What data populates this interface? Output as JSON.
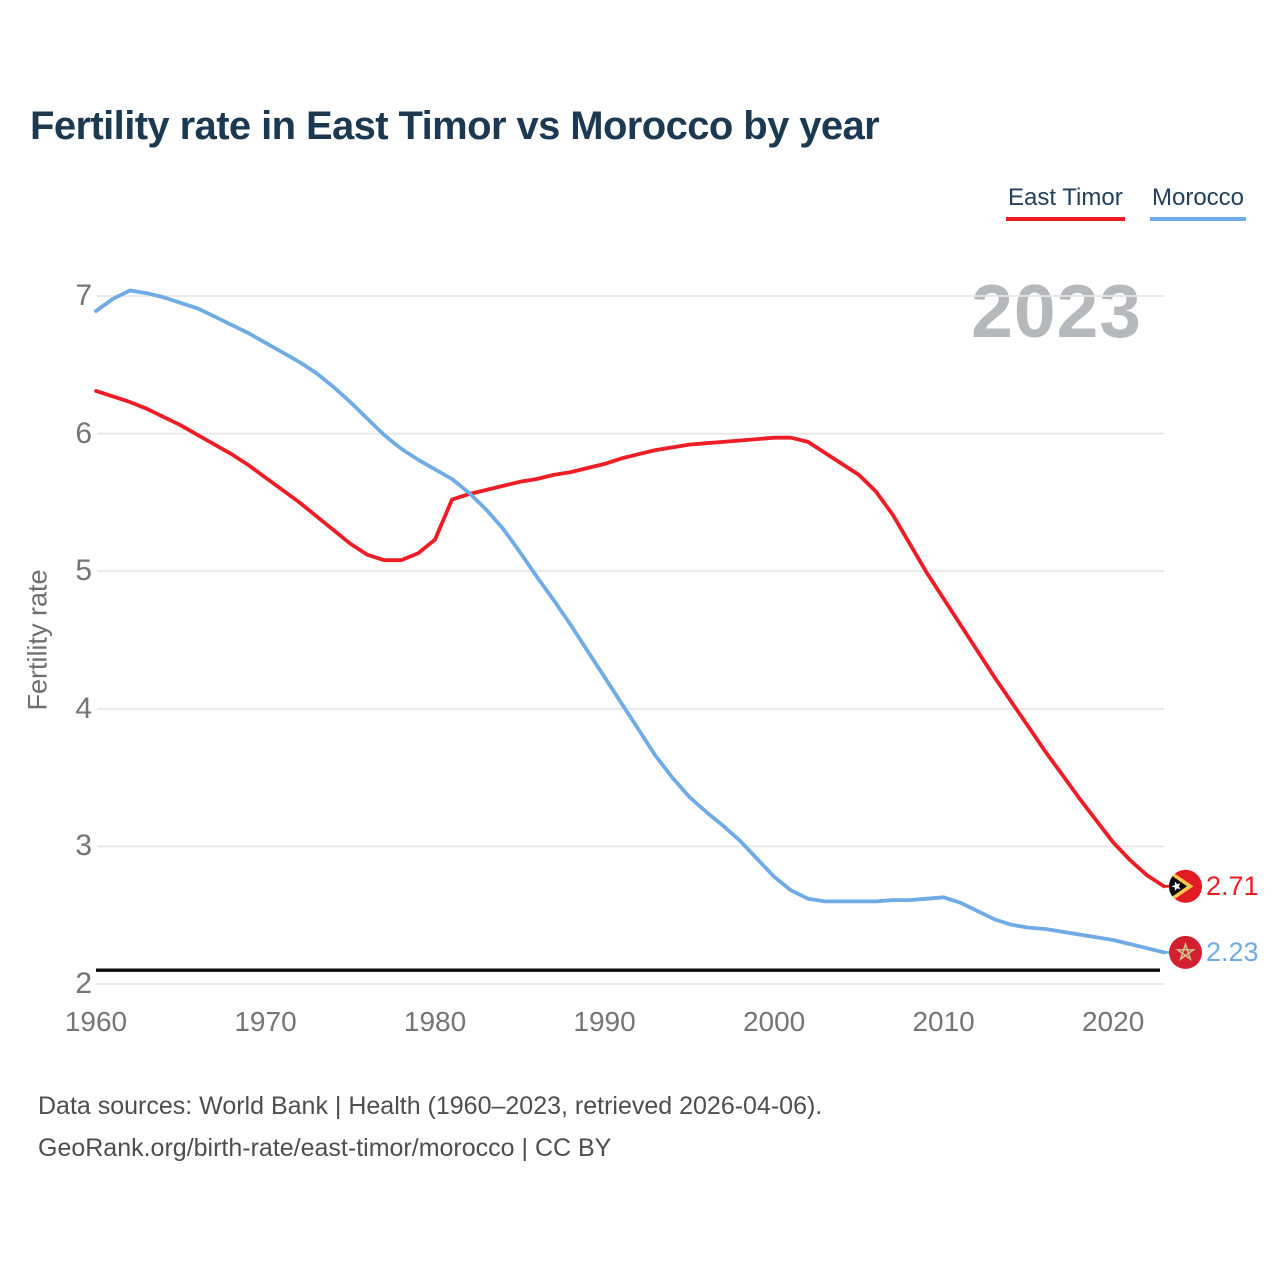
{
  "header": {
    "title": "Fertility rate in East Timor vs Morocco by year"
  },
  "legend": {
    "items": [
      {
        "label": "East Timor",
        "color": "#ee1c25"
      },
      {
        "label": "Morocco",
        "color": "#6fabe4"
      }
    ]
  },
  "watermark": "2023",
  "y_axis": {
    "title": "Fertility rate",
    "tick_labels": [
      "7",
      "6",
      "5",
      "4",
      "3",
      "2"
    ],
    "tick_values": [
      7,
      6,
      5,
      4,
      3,
      2
    ]
  },
  "x_axis": {
    "tick_labels": [
      "1960",
      "1970",
      "1980",
      "1990",
      "2000",
      "2010",
      "2020"
    ],
    "tick_values": [
      1960,
      1970,
      1980,
      1990,
      2000,
      2010,
      2020
    ]
  },
  "reference_line": {
    "value": 2.1,
    "color": "#0b0b0b"
  },
  "end_labels": [
    {
      "series": "East Timor",
      "value": "2.71",
      "flag": "east-timor",
      "color": "#ee1c25",
      "y": 2.71
    },
    {
      "series": "Morocco",
      "value": "2.23",
      "flag": "morocco",
      "color": "#6fabe4",
      "y": 2.23
    }
  ],
  "footer": {
    "line1": "Data sources: World Bank | Health (1960–2023, retrieved 2026-04-06).",
    "line2": "GeoRank.org/birth-rate/east-timor/morocco | CC BY"
  },
  "chart_data": {
    "type": "line",
    "title": "Fertility rate in East Timor vs Morocco by year",
    "xlabel": "",
    "ylabel": "Fertility rate",
    "ylim": [
      2,
      7
    ],
    "xlim": [
      1960,
      2023
    ],
    "grid": "horizontal",
    "legend_position": "top-right",
    "x": [
      1960,
      1961,
      1962,
      1963,
      1964,
      1965,
      1966,
      1967,
      1968,
      1969,
      1970,
      1971,
      1972,
      1973,
      1974,
      1975,
      1976,
      1977,
      1978,
      1979,
      1980,
      1981,
      1982,
      1983,
      1984,
      1985,
      1986,
      1987,
      1988,
      1989,
      1990,
      1991,
      1992,
      1993,
      1994,
      1995,
      1996,
      1997,
      1998,
      1999,
      2000,
      2001,
      2002,
      2003,
      2004,
      2005,
      2006,
      2007,
      2008,
      2009,
      2010,
      2011,
      2012,
      2013,
      2014,
      2015,
      2016,
      2017,
      2018,
      2019,
      2020,
      2021,
      2022,
      2023
    ],
    "series": [
      {
        "name": "East Timor",
        "color": "#ee1c25",
        "values": [
          6.31,
          6.27,
          6.23,
          6.18,
          6.12,
          6.06,
          5.99,
          5.92,
          5.85,
          5.77,
          5.68,
          5.59,
          5.5,
          5.4,
          5.3,
          5.2,
          5.12,
          5.08,
          5.08,
          5.13,
          5.23,
          5.52,
          5.56,
          5.59,
          5.62,
          5.65,
          5.67,
          5.7,
          5.72,
          5.75,
          5.78,
          5.82,
          5.85,
          5.88,
          5.9,
          5.92,
          5.93,
          5.94,
          5.95,
          5.96,
          5.97,
          5.97,
          5.94,
          5.86,
          5.78,
          5.7,
          5.58,
          5.41,
          5.2,
          4.99,
          4.8,
          4.61,
          4.42,
          4.23,
          4.05,
          3.87,
          3.69,
          3.52,
          3.35,
          3.19,
          3.03,
          2.9,
          2.79,
          2.71
        ]
      },
      {
        "name": "Morocco",
        "color": "#6fabe4",
        "values": [
          6.89,
          6.98,
          7.04,
          7.02,
          6.99,
          6.95,
          6.91,
          6.85,
          6.79,
          6.73,
          6.66,
          6.59,
          6.52,
          6.44,
          6.34,
          6.23,
          6.11,
          5.99,
          5.89,
          5.81,
          5.74,
          5.67,
          5.57,
          5.45,
          5.31,
          5.14,
          4.96,
          4.79,
          4.61,
          4.42,
          4.23,
          4.04,
          3.85,
          3.66,
          3.5,
          3.36,
          3.25,
          3.15,
          3.04,
          2.91,
          2.78,
          2.68,
          2.62,
          2.6,
          2.6,
          2.6,
          2.6,
          2.61,
          2.61,
          2.62,
          2.63,
          2.59,
          2.53,
          2.47,
          2.43,
          2.41,
          2.4,
          2.38,
          2.36,
          2.34,
          2.32,
          2.29,
          2.26,
          2.23
        ]
      }
    ]
  }
}
